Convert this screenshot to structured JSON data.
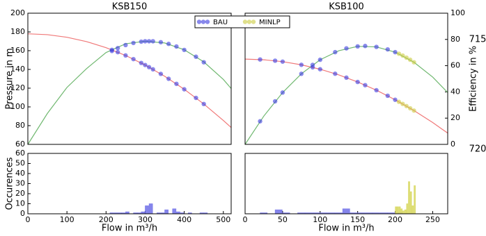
{
  "chart_data": [
    {
      "type": "scatter",
      "title": "KSB150",
      "xlim": [
        0,
        520
      ],
      "ylim": [
        60,
        200
      ],
      "y2lim": [
        0,
        100
      ],
      "yticks": [
        60,
        80,
        100,
        120,
        140,
        160,
        180,
        200
      ],
      "ylabel": "Pressure in m",
      "ycolor": "#e02020",
      "curves": [
        {
          "color": "#f07878",
          "axis": "y",
          "x": [
            0,
            50,
            100,
            150,
            200,
            250,
            300,
            350,
            400,
            450,
            500,
            520
          ],
          "values": [
            178,
            177.1,
            174.3,
            169.7,
            163.2,
            154.9,
            144.7,
            132.7,
            118.8,
            103.1,
            85.5,
            78
          ]
        },
        {
          "color": "#70b870",
          "axis": "y2",
          "x": [
            0,
            50,
            100,
            150,
            200,
            250,
            300,
            350,
            400,
            450,
            500,
            520
          ],
          "values": [
            0,
            23.6,
            43.4,
            57.7,
            70.0,
            76.7,
            78.6,
            77.3,
            72.1,
            62.9,
            49.5,
            42.6
          ]
        }
      ],
      "series": [
        {
          "name": "BAU",
          "color": "#3a3ae0",
          "x": [
            215,
            230,
            250,
            270,
            290,
            300,
            310,
            320,
            340,
            360,
            380,
            400,
            430,
            450
          ],
          "values": [
            160.9,
            158.4,
            154.9,
            151.0,
            146.9,
            144.7,
            142.4,
            140.1,
            135.2,
            130.0,
            124.6,
            118.8,
            109.6,
            103.1
          ],
          "efficiency": [
            71.2,
            73.4,
            75.7,
            77.3,
            78.3,
            78.6,
            78.6,
            78.6,
            77.9,
            76.6,
            74.6,
            72.0,
            66.8,
            62.6
          ]
        }
      ]
    },
    {
      "type": "scatter",
      "title": "KSB100",
      "xlim": [
        0,
        270
      ],
      "ylim": [
        60,
        200
      ],
      "y2lim": [
        0,
        100
      ],
      "y2ticks": [
        0,
        20,
        40,
        60,
        80,
        100
      ],
      "y2label": "Efficiency in %",
      "y2color": "#208020",
      "curves": [
        {
          "color": "#f07878",
          "axis": "y",
          "x": [
            0,
            25,
            50,
            75,
            100,
            125,
            150,
            175,
            200,
            225,
            250,
            270
          ],
          "values": [
            151,
            150.3,
            148.3,
            144.9,
            140.2,
            134.1,
            126.6,
            117.8,
            107.6,
            96.1,
            83.3,
            72.0
          ]
        },
        {
          "color": "#70b870",
          "axis": "y2",
          "x": [
            0,
            25,
            50,
            75,
            100,
            125,
            150,
            175,
            200,
            225,
            250,
            270
          ],
          "values": [
            0,
            21.6,
            39.5,
            53.8,
            64.5,
            71.4,
            74.7,
            74.3,
            70.3,
            62.6,
            51.3,
            39.5
          ]
        }
      ],
      "series": [
        {
          "name": "BAU",
          "color": "#3a3ae0",
          "x": [
            20,
            40,
            50,
            75,
            90,
            100,
            120,
            135,
            150,
            160,
            175,
            190,
            200
          ],
          "values": [
            150.6,
            149.3,
            148.3,
            144.9,
            142.2,
            140.2,
            135.4,
            131.2,
            126.6,
            123.2,
            117.8,
            111.9,
            107.6
          ],
          "efficiency": [
            17.6,
            32.8,
            39.5,
            53.8,
            60.6,
            64.5,
            70.3,
            73.2,
            74.7,
            75,
            74.3,
            72.4,
            70.3
          ]
        },
        {
          "name": "MINLP",
          "color": "#cccc40",
          "x": [
            205,
            210,
            215,
            220,
            225
          ],
          "values": [
            105.4,
            103.2,
            100.9,
            98.5,
            96.1
          ],
          "efficiency": [
            69.1,
            67.7,
            66.1,
            64.5,
            62.6
          ]
        }
      ]
    },
    {
      "type": "histogram",
      "xlim": [
        0,
        520
      ],
      "xticks": [
        0,
        100,
        200,
        300,
        400,
        500
      ],
      "ylim": [
        0,
        60
      ],
      "yticks": [
        0,
        10,
        20,
        30,
        40,
        50,
        60
      ],
      "ylabel": "Occurences",
      "xlabel": "Flow in m³/h",
      "series": [
        {
          "color": "#7070e8",
          "bins": [
            210,
            220,
            230,
            240,
            250,
            260,
            270,
            280,
            290,
            300,
            310,
            320,
            330,
            340,
            350,
            360,
            370,
            380,
            390,
            400,
            410,
            420,
            430,
            440,
            450,
            460
          ],
          "counts": [
            1,
            1,
            1,
            1,
            2,
            0,
            1,
            1,
            2,
            8,
            10,
            0,
            1,
            1,
            4,
            0,
            5,
            2,
            1,
            0,
            1,
            0,
            0,
            1,
            1
          ]
        }
      ]
    },
    {
      "type": "histogram",
      "xlim": [
        0,
        270
      ],
      "xticks": [
        0,
        50,
        100,
        150,
        200,
        250
      ],
      "ylim": [
        0,
        60
      ],
      "xlabel": "Flow in m³/h",
      "series": [
        {
          "color": "#7070e8",
          "bins": [
            20,
            30,
            40,
            50,
            60,
            70,
            80,
            90,
            100,
            110,
            120,
            130,
            140,
            150,
            160,
            170,
            180,
            190,
            200,
            210
          ],
          "counts": [
            1,
            0,
            4,
            1,
            0,
            1,
            1,
            1,
            1,
            1,
            1,
            5,
            1,
            1,
            1,
            1,
            1,
            1,
            1
          ]
        },
        {
          "color": "#d8d860",
          "bins": [
            200,
            202.5,
            205,
            207.5,
            210,
            212.5,
            215,
            217.5,
            220,
            222.5,
            225,
            227.5,
            230
          ],
          "counts": [
            7,
            7,
            7,
            5,
            3,
            4,
            10,
            32,
            22,
            8,
            28,
            0
          ]
        }
      ]
    }
  ],
  "annotations": [
    "715",
    "720"
  ]
}
